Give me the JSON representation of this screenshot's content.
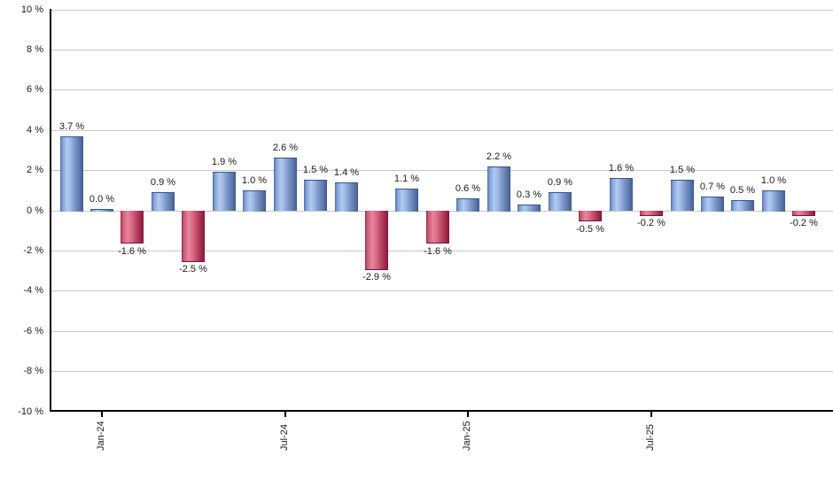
{
  "chart_data": {
    "type": "bar",
    "title": "",
    "unit": "%",
    "values": [
      3.7,
      0.0,
      -1.6,
      0.9,
      -2.5,
      1.9,
      1.0,
      2.6,
      1.5,
      1.4,
      -2.9,
      1.1,
      -1.6,
      0.6,
      2.2,
      0.3,
      0.9,
      -0.5,
      1.6,
      -0.2,
      1.5,
      0.7,
      0.5,
      1.0,
      -0.2
    ],
    "bar_labels": [
      "3.7 %",
      "0.0 %",
      "-1.6 %",
      "0.9 %",
      "-2.5 %",
      "1.9 %",
      "1.0 %",
      "2.6 %",
      "1.5 %",
      "1.4 %",
      "-2.9 %",
      "1.1 %",
      "-1.6 %",
      "0.6 %",
      "2.2 %",
      "0.3 %",
      "0.9 %",
      "-0.5 %",
      "1.6 %",
      "-0.2 %",
      "1.5 %",
      "0.7 %",
      "0.5 %",
      "1.0 %",
      "-0.2 %"
    ],
    "x_ticks": [
      {
        "label": "Jan-24",
        "bar_index": 1
      },
      {
        "label": "Jul-24",
        "bar_index": 7
      },
      {
        "label": "Jan-25",
        "bar_index": 13
      },
      {
        "label": "Jul-25",
        "bar_index": 19
      }
    ],
    "y_ticks": [
      {
        "value": 10,
        "label": "10 %"
      },
      {
        "value": 8,
        "label": "8 %"
      },
      {
        "value": 6,
        "label": "6 %"
      },
      {
        "value": 4,
        "label": "4 %"
      },
      {
        "value": 2,
        "label": "2 %"
      },
      {
        "value": 0,
        "label": "0 %"
      },
      {
        "value": -2,
        "label": "-2 %"
      },
      {
        "value": -4,
        "label": "-4 %"
      },
      {
        "value": -6,
        "label": "-6 %"
      },
      {
        "value": -8,
        "label": "-8 %"
      },
      {
        "value": -10,
        "label": "-10 %"
      }
    ],
    "ylim": [
      -10,
      10
    ],
    "grid": true,
    "legend": "none",
    "colors": {
      "positive_bar": "#6b8fc9",
      "negative_bar": "#c34868",
      "gridline": "#c9c9c9",
      "axis": "#000000",
      "text": "#1a1a1a",
      "background": "#ffffff"
    }
  }
}
